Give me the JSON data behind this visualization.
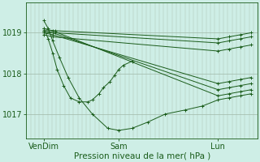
{
  "background_color": "#ceeee6",
  "plot_bg_color": "#ceeee6",
  "line_color": "#1a5c1a",
  "marker": "+",
  "marker_size": 3,
  "line_width": 0.7,
  "grid_color_v": "#b0c8b8",
  "grid_color_h": "#a0b8a8",
  "xlabel": "Pression niveau de la mer( hPa )",
  "yticks": [
    1017,
    1018,
    1019
  ],
  "ylim": [
    1016.4,
    1019.75
  ],
  "xtick_labels": [
    "VenDim",
    "Sam",
    "Lun"
  ],
  "xtick_positions": [
    0.08,
    0.42,
    0.87
  ],
  "xlim": [
    0.0,
    1.05
  ],
  "xlabel_fontsize": 7.5,
  "ytick_fontsize": 7,
  "xtick_fontsize": 7,
  "series": [
    {
      "x": [
        0.08,
        0.13,
        0.87,
        0.92,
        0.97,
        1.02
      ],
      "y": [
        1019.05,
        1019.05,
        1018.85,
        1018.9,
        1018.95,
        1019.0
      ]
    },
    {
      "x": [
        0.08,
        0.13,
        0.87,
        0.92,
        0.97,
        1.02
      ],
      "y": [
        1019.0,
        1019.0,
        1018.75,
        1018.8,
        1018.85,
        1018.9
      ]
    },
    {
      "x": [
        0.08,
        0.12,
        0.87,
        0.92,
        0.97,
        1.02
      ],
      "y": [
        1019.1,
        1019.05,
        1017.45,
        1017.5,
        1017.55,
        1017.6
      ]
    },
    {
      "x": [
        0.08,
        0.12,
        0.87,
        0.92,
        0.97,
        1.02
      ],
      "y": [
        1019.05,
        1019.0,
        1017.6,
        1017.65,
        1017.7,
        1017.75
      ]
    },
    {
      "x": [
        0.08,
        0.12,
        0.87,
        0.92,
        0.97,
        1.02
      ],
      "y": [
        1019.0,
        1018.95,
        1017.75,
        1017.8,
        1017.85,
        1017.9
      ]
    },
    {
      "x": [
        0.08,
        0.12,
        0.87,
        0.92,
        0.97,
        1.02
      ],
      "y": [
        1018.95,
        1018.9,
        1018.55,
        1018.6,
        1018.65,
        1018.7
      ]
    },
    {
      "x": [
        0.08,
        0.1,
        0.12,
        0.14,
        0.17,
        0.2,
        0.24,
        0.28,
        0.3,
        0.33,
        0.35,
        0.38,
        0.4,
        0.42,
        0.44,
        0.48
      ],
      "y": [
        1019.1,
        1018.85,
        1018.5,
        1018.1,
        1017.7,
        1017.4,
        1017.3,
        1017.3,
        1017.35,
        1017.5,
        1017.65,
        1017.8,
        1017.95,
        1018.1,
        1018.2,
        1018.3
      ]
    },
    {
      "x": [
        0.08,
        0.1,
        0.12,
        0.15,
        0.19,
        0.24,
        0.3,
        0.37,
        0.42,
        0.48,
        0.55,
        0.63,
        0.72,
        0.8,
        0.87,
        0.92,
        0.97,
        1.02
      ],
      "y": [
        1019.3,
        1019.1,
        1018.8,
        1018.4,
        1017.9,
        1017.4,
        1017.0,
        1016.65,
        1016.6,
        1016.65,
        1016.8,
        1017.0,
        1017.1,
        1017.2,
        1017.35,
        1017.4,
        1017.45,
        1017.5
      ]
    }
  ]
}
